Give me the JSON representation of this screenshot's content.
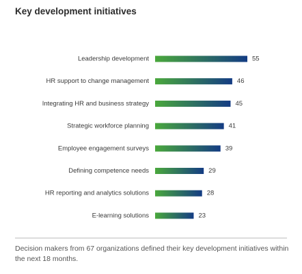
{
  "chart_data": {
    "type": "bar",
    "orientation": "horizontal",
    "title": "Key development initiatives",
    "categories": [
      "Leadership development",
      "HR support to change management",
      "Integrating HR and business strategy",
      "Strategic workforce planning",
      "Employee engagement surveys",
      "Defining competence needs",
      "HR reporting and analytics solutions",
      "E-learning solutions"
    ],
    "values": [
      55,
      46,
      45,
      41,
      39,
      29,
      28,
      23
    ],
    "xlim": [
      0,
      55
    ],
    "grid": false,
    "legend": "none",
    "data_labels": true,
    "colors": {
      "gradient_start": "#4aa83c",
      "gradient_end": "#143c84"
    }
  },
  "footnote": "Decision makers from 67 organizations defined their key development initiatives within the next 18 months."
}
